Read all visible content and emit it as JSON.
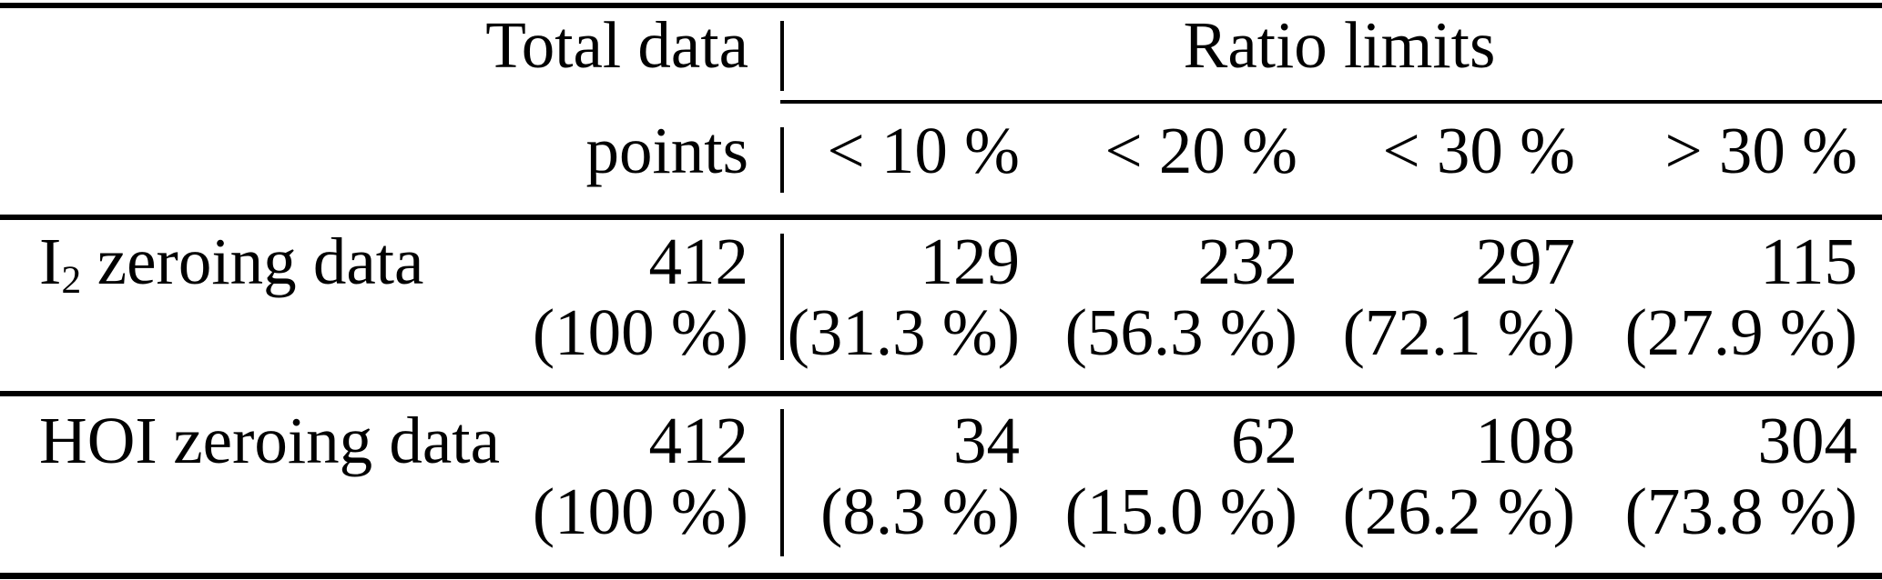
{
  "table": {
    "header": {
      "total_line1": "Total data",
      "total_line2": "points",
      "group_title": "Ratio limits",
      "ratio_columns": [
        "< 10 %",
        "< 20 %",
        "< 30 %",
        "> 30 %"
      ]
    },
    "rows": [
      {
        "label_prefix": "I",
        "label_sub": "2",
        "label_rest": "zeroing data",
        "total": "412",
        "total_pct": "(100 %)",
        "counts": [
          "129",
          "232",
          "297",
          "115"
        ],
        "pcts": [
          "(31.3 %)",
          "(56.3 %)",
          "(72.1 %)",
          "(27.9 %)"
        ]
      },
      {
        "label_prefix": "HOI",
        "label_sub": "",
        "label_rest": "zeroing data",
        "total": "412",
        "total_pct": "(100 %)",
        "counts": [
          "34",
          "62",
          "108",
          "304"
        ],
        "pcts": [
          "(8.3 %)",
          "(15.0 %)",
          "(26.2 %)",
          "(73.8 %)"
        ]
      }
    ]
  }
}
